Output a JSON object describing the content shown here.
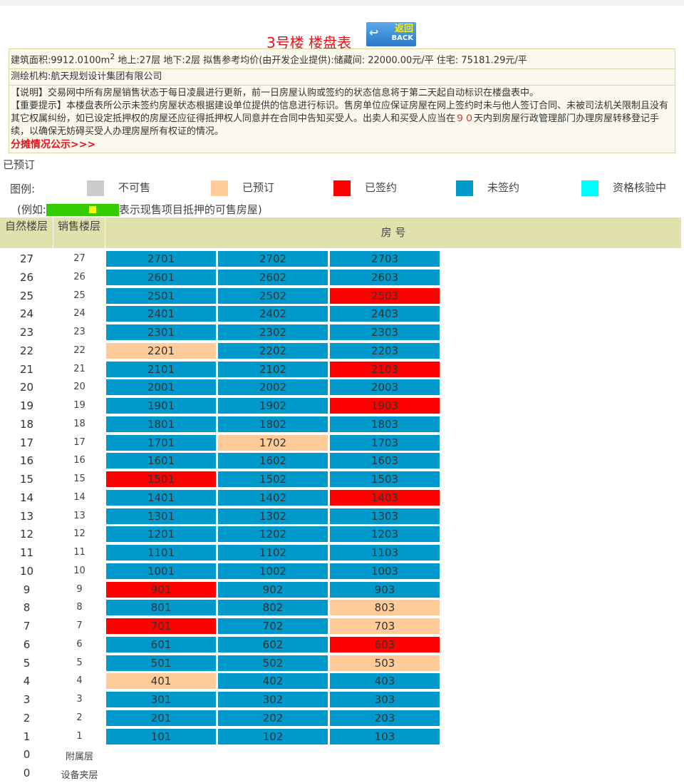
{
  "header": {
    "title": "3号楼  楼盘表",
    "back_cn": "返回",
    "back_en": "BACK"
  },
  "info": {
    "line1_a": "建筑面积:9912.0100m",
    "line1_sup": "2",
    "line1_b": "  地上:27层  地下:2层  拟售参考均价(由开发企业提供):储藏间:  22000.00元/平 住宅:  75181.29元/平",
    "surveyor": "测绘机构:航天规划设计集团有限公司",
    "note": "【说明】交易网中所有房屋销售状态于每日凌晨进行更新，前一日房屋认购或签约的状态信息将于第二天起自动标识在楼盘表中。",
    "notice_a": "【重要提示】本楼盘表所公示未签约房屋状态根据建设单位提供的信息进行标识。售房单位应保证房屋在网上签约时未与他人签订合同、未被司法机关限制且没有其它权属纠纷，如已设定抵押权的房屋还应征得抵押权人同意并在合同中告知买受人。出卖人和买受人应当在",
    "notice_days": "９０",
    "notice_b": "天内到房屋行政管理部门办理房屋转移登记手续，以确保无妨碍买受人办理房屋所有权证的情况。",
    "link": "分摊情况公示>>>"
  },
  "reserved_label": "已预订",
  "legend": {
    "label": "图例:",
    "items": [
      {
        "label": "不可售",
        "color": "#cccccc"
      },
      {
        "label": "已预订",
        "color": "#ffcc99"
      },
      {
        "label": "已签约",
        "color": "#ff0000"
      },
      {
        "label": "未签约",
        "color": "#0099cc"
      },
      {
        "label": "资格核验中",
        "color": "#00ffff"
      }
    ]
  },
  "example": {
    "prefix": "(例如:",
    "suffix": "表示现售项目抵押的可售房屋)",
    "color": "#33cc00",
    "dot_color": "#ffff00"
  },
  "table": {
    "col_natural": "自然楼层",
    "col_sale": "销售楼层",
    "col_room": "房 号"
  },
  "status_colors": {
    "unsigned": "#0099cc",
    "reserved": "#ffcc99",
    "signed": "#ff0000"
  },
  "rows": [
    {
      "floor": "27",
      "sale": "27",
      "units": [
        [
          "2701",
          "unsigned"
        ],
        [
          "2702",
          "unsigned"
        ],
        [
          "2703",
          "unsigned"
        ]
      ]
    },
    {
      "floor": "26",
      "sale": "26",
      "units": [
        [
          "2601",
          "unsigned"
        ],
        [
          "2602",
          "unsigned"
        ],
        [
          "2603",
          "unsigned"
        ]
      ]
    },
    {
      "floor": "25",
      "sale": "25",
      "units": [
        [
          "2501",
          "unsigned"
        ],
        [
          "2502",
          "unsigned"
        ],
        [
          "2503",
          "signed"
        ]
      ]
    },
    {
      "floor": "24",
      "sale": "24",
      "units": [
        [
          "2401",
          "unsigned"
        ],
        [
          "2402",
          "unsigned"
        ],
        [
          "2403",
          "unsigned"
        ]
      ]
    },
    {
      "floor": "23",
      "sale": "23",
      "units": [
        [
          "2301",
          "unsigned"
        ],
        [
          "2302",
          "unsigned"
        ],
        [
          "2303",
          "unsigned"
        ]
      ]
    },
    {
      "floor": "22",
      "sale": "22",
      "units": [
        [
          "2201",
          "reserved"
        ],
        [
          "2202",
          "unsigned"
        ],
        [
          "2203",
          "unsigned"
        ]
      ]
    },
    {
      "floor": "21",
      "sale": "21",
      "units": [
        [
          "2101",
          "unsigned"
        ],
        [
          "2102",
          "unsigned"
        ],
        [
          "2103",
          "signed"
        ]
      ]
    },
    {
      "floor": "20",
      "sale": "20",
      "units": [
        [
          "2001",
          "unsigned"
        ],
        [
          "2002",
          "unsigned"
        ],
        [
          "2003",
          "unsigned"
        ]
      ]
    },
    {
      "floor": "19",
      "sale": "19",
      "units": [
        [
          "1901",
          "unsigned"
        ],
        [
          "1902",
          "unsigned"
        ],
        [
          "1903",
          "signed"
        ]
      ]
    },
    {
      "floor": "18",
      "sale": "18",
      "units": [
        [
          "1801",
          "unsigned"
        ],
        [
          "1802",
          "unsigned"
        ],
        [
          "1803",
          "unsigned"
        ]
      ]
    },
    {
      "floor": "17",
      "sale": "17",
      "units": [
        [
          "1701",
          "unsigned"
        ],
        [
          "1702",
          "reserved"
        ],
        [
          "1703",
          "unsigned"
        ]
      ]
    },
    {
      "floor": "16",
      "sale": "16",
      "units": [
        [
          "1601",
          "unsigned"
        ],
        [
          "1602",
          "unsigned"
        ],
        [
          "1603",
          "unsigned"
        ]
      ]
    },
    {
      "floor": "15",
      "sale": "15",
      "units": [
        [
          "1501",
          "signed"
        ],
        [
          "1502",
          "unsigned"
        ],
        [
          "1503",
          "unsigned"
        ]
      ]
    },
    {
      "floor": "14",
      "sale": "14",
      "units": [
        [
          "1401",
          "unsigned"
        ],
        [
          "1402",
          "unsigned"
        ],
        [
          "1403",
          "signed"
        ]
      ]
    },
    {
      "floor": "13",
      "sale": "13",
      "units": [
        [
          "1301",
          "unsigned"
        ],
        [
          "1302",
          "unsigned"
        ],
        [
          "1303",
          "unsigned"
        ]
      ]
    },
    {
      "floor": "12",
      "sale": "12",
      "units": [
        [
          "1201",
          "unsigned"
        ],
        [
          "1202",
          "unsigned"
        ],
        [
          "1203",
          "unsigned"
        ]
      ]
    },
    {
      "floor": "11",
      "sale": "11",
      "units": [
        [
          "1101",
          "unsigned"
        ],
        [
          "1102",
          "unsigned"
        ],
        [
          "1103",
          "unsigned"
        ]
      ]
    },
    {
      "floor": "10",
      "sale": "10",
      "units": [
        [
          "1001",
          "unsigned"
        ],
        [
          "1002",
          "unsigned"
        ],
        [
          "1003",
          "unsigned"
        ]
      ]
    },
    {
      "floor": "9",
      "sale": "9",
      "units": [
        [
          "901",
          "signed"
        ],
        [
          "902",
          "unsigned"
        ],
        [
          "903",
          "unsigned"
        ]
      ]
    },
    {
      "floor": "8",
      "sale": "8",
      "units": [
        [
          "801",
          "unsigned"
        ],
        [
          "802",
          "unsigned"
        ],
        [
          "803",
          "reserved"
        ]
      ]
    },
    {
      "floor": "7",
      "sale": "7",
      "units": [
        [
          "701",
          "signed"
        ],
        [
          "702",
          "unsigned"
        ],
        [
          "703",
          "reserved"
        ]
      ]
    },
    {
      "floor": "6",
      "sale": "6",
      "units": [
        [
          "601",
          "unsigned"
        ],
        [
          "602",
          "unsigned"
        ],
        [
          "603",
          "signed"
        ]
      ]
    },
    {
      "floor": "5",
      "sale": "5",
      "units": [
        [
          "501",
          "unsigned"
        ],
        [
          "502",
          "unsigned"
        ],
        [
          "503",
          "reserved"
        ]
      ]
    },
    {
      "floor": "4",
      "sale": "4",
      "units": [
        [
          "401",
          "reserved"
        ],
        [
          "402",
          "unsigned"
        ],
        [
          "403",
          "unsigned"
        ]
      ]
    },
    {
      "floor": "3",
      "sale": "3",
      "units": [
        [
          "301",
          "unsigned"
        ],
        [
          "302",
          "unsigned"
        ],
        [
          "303",
          "unsigned"
        ]
      ]
    },
    {
      "floor": "2",
      "sale": "2",
      "units": [
        [
          "201",
          "unsigned"
        ],
        [
          "202",
          "unsigned"
        ],
        [
          "203",
          "unsigned"
        ]
      ]
    },
    {
      "floor": "1",
      "sale": "1",
      "units": [
        [
          "101",
          "unsigned"
        ],
        [
          "102",
          "unsigned"
        ],
        [
          "103",
          "unsigned"
        ]
      ]
    },
    {
      "floor": "0",
      "sale": "附属层",
      "units": []
    },
    {
      "floor": "0",
      "sale": "设备夹层",
      "units": []
    }
  ]
}
